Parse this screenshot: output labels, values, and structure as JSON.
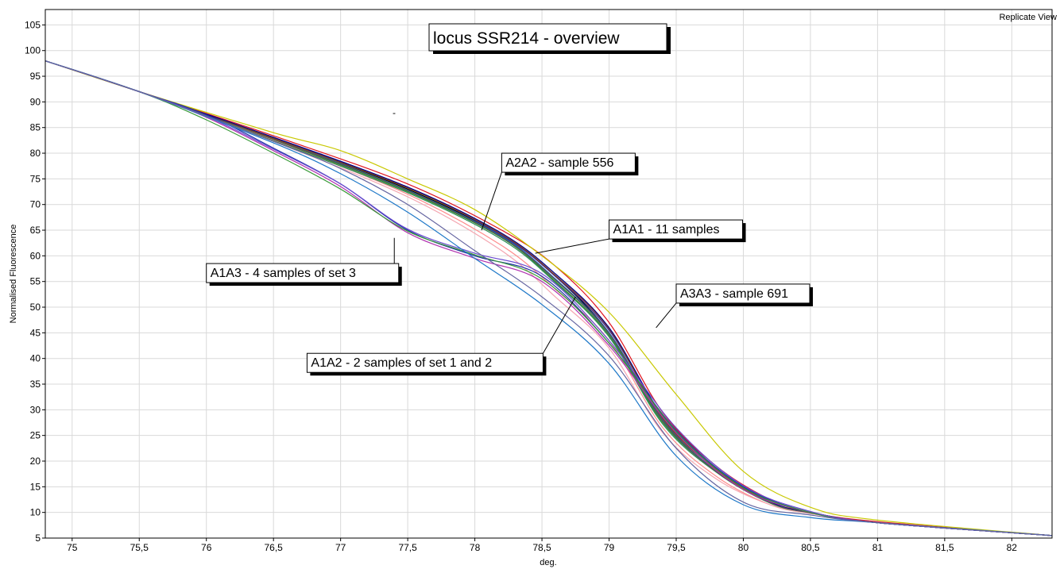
{
  "view_label": "Replicate View",
  "chart_data": {
    "type": "line",
    "title": "locus SSR214 - overview",
    "xlabel": "deg.",
    "ylabel": "Normalised Fluorescence",
    "xlim": [
      74.8,
      82.3
    ],
    "ylim": [
      5,
      108
    ],
    "x_ticks": [
      75,
      75.5,
      76,
      76.5,
      77,
      77.5,
      78,
      78.5,
      79,
      79.5,
      80,
      80.5,
      81,
      81.5,
      82
    ],
    "x_tick_labels": [
      "75",
      "75,5",
      "76",
      "76,5",
      "77",
      "77,5",
      "78",
      "78,5",
      "79",
      "79,5",
      "80",
      "80,5",
      "81",
      "81,5",
      "82"
    ],
    "y_ticks": [
      5,
      10,
      15,
      20,
      25,
      30,
      35,
      40,
      45,
      50,
      55,
      60,
      65,
      70,
      75,
      80,
      85,
      90,
      95,
      100,
      105
    ],
    "grid": true,
    "series": [
      {
        "color": "#000000",
        "x": [
          74.8,
          75.5,
          76.5,
          77.5,
          78.2,
          78.6,
          79.0,
          79.4,
          79.8,
          80.2,
          80.5,
          81.0,
          82.3
        ],
        "y": [
          98,
          92,
          83,
          73,
          64,
          56,
          45,
          28,
          18,
          12,
          10,
          8,
          5.5
        ]
      },
      {
        "color": "#3a1f9a",
        "x": [
          74.8,
          75.5,
          76.5,
          77.5,
          78.2,
          78.6,
          79.0,
          79.4,
          79.8,
          80.2,
          80.5,
          81.0,
          82.3
        ],
        "y": [
          98,
          92,
          83,
          73.3,
          64,
          56,
          45.5,
          28.5,
          18.5,
          12,
          10,
          8,
          5.5
        ]
      },
      {
        "color": "#1a5fa0",
        "x": [
          74.8,
          75.5,
          76.5,
          77.5,
          78.2,
          78.6,
          79.0,
          79.4,
          79.8,
          80.2,
          80.5,
          81.0,
          82.3
        ],
        "y": [
          98,
          92,
          82.8,
          72.8,
          63.8,
          55.5,
          45,
          28,
          18,
          12,
          10,
          8,
          5.5
        ]
      },
      {
        "color": "#2d8a2d",
        "x": [
          74.8,
          75.5,
          76.5,
          77.5,
          78.2,
          78.6,
          79.0,
          79.4,
          79.8,
          80.2,
          80.5,
          81.0,
          82.3
        ],
        "y": [
          98,
          92,
          82.6,
          72.5,
          63.5,
          55,
          44.5,
          27.5,
          18,
          12,
          10,
          8,
          5.5
        ]
      },
      {
        "color": "#e0141e",
        "x": [
          74.8,
          75.5,
          76.5,
          77.5,
          78.2,
          78.6,
          79.0,
          79.4,
          79.8,
          80.2,
          80.5,
          81.0,
          82.3
        ],
        "y": [
          98,
          92,
          83.4,
          74,
          65,
          58,
          47,
          29.5,
          19,
          12.5,
          10,
          8.2,
          5.5
        ]
      },
      {
        "color": "#ff8c8c",
        "x": [
          74.8,
          75.5,
          76.5,
          77.5,
          78.2,
          78.6,
          79.0,
          79.4,
          79.8,
          80.2,
          80.5,
          81.0,
          82.3
        ],
        "y": [
          98,
          92,
          82.5,
          72,
          62,
          53.5,
          43.5,
          26.5,
          17,
          11.5,
          9.8,
          8,
          5.5
        ]
      },
      {
        "color": "#f4a6b0",
        "x": [
          74.8,
          75.5,
          76.5,
          77.5,
          78.2,
          78.6,
          79.0,
          79.4,
          79.8,
          80.2,
          80.5,
          81.0,
          82.3
        ],
        "y": [
          98,
          92,
          82.3,
          71.5,
          61,
          52,
          42,
          25.5,
          16.5,
          11.5,
          9.8,
          8,
          5.5
        ]
      },
      {
        "color": "#8b4513",
        "x": [
          74.8,
          75.5,
          76.5,
          77.5,
          78.2,
          78.6,
          79.0,
          79.4,
          79.8,
          80.2,
          80.5,
          81.0,
          82.3
        ],
        "y": [
          98,
          92,
          82.9,
          73.2,
          64.2,
          56.2,
          45.8,
          28.3,
          18.3,
          12,
          10,
          8,
          5.5
        ]
      },
      {
        "color": "#2e8b57",
        "x": [
          74.8,
          75.5,
          76.5,
          77.5,
          78.2,
          78.6,
          79.0,
          79.4,
          79.8,
          80.2,
          80.5,
          81.0,
          82.3
        ],
        "y": [
          98,
          92,
          82.4,
          72.3,
          63.2,
          54.8,
          44.2,
          27.2,
          17.8,
          11.8,
          9.9,
          8,
          5.5
        ]
      },
      {
        "color": "#00008b",
        "x": [
          74.8,
          75.5,
          76.5,
          77.5,
          78.2,
          78.6,
          79.0,
          79.4,
          79.8,
          80.2,
          80.5,
          81.0,
          82.3
        ],
        "y": [
          98,
          92,
          83.1,
          73.4,
          64.4,
          56.5,
          46,
          28.8,
          18.6,
          12.1,
          10,
          8,
          5.5
        ]
      },
      {
        "color": "#555555",
        "x": [
          74.8,
          75.5,
          76.5,
          77.5,
          78.2,
          78.6,
          79.0,
          79.4,
          79.8,
          80.2,
          80.5,
          81.0,
          82.3
        ],
        "y": [
          98,
          92,
          82.7,
          72.7,
          63.6,
          55.3,
          44.8,
          27.8,
          17.9,
          11.9,
          9.9,
          8,
          5.5
        ]
      },
      {
        "color": "#c8c800",
        "x": [
          74.8,
          75.5,
          76.5,
          77.0,
          77.5,
          78.0,
          78.5,
          79.0,
          79.5,
          80.0,
          80.5,
          81.0,
          82.3
        ],
        "y": [
          98,
          92,
          84,
          80.5,
          75,
          69,
          60,
          49,
          33,
          18,
          11,
          8.5,
          5.5
        ]
      },
      {
        "color": "#1f2fa8",
        "x": [
          74.8,
          75.5,
          76.0,
          76.5,
          77.0,
          77.5,
          78.0,
          78.5,
          79.0,
          79.5,
          80.0,
          80.5,
          81.0,
          82.3
        ],
        "y": [
          98,
          92,
          87.5,
          81,
          74,
          65,
          60,
          56,
          43,
          26,
          15,
          10,
          8,
          5.5
        ]
      },
      {
        "color": "#b030b0",
        "x": [
          74.8,
          75.5,
          76.0,
          76.5,
          77.0,
          77.5,
          78.0,
          78.5,
          79.0,
          79.5,
          80.0,
          80.5,
          81.0,
          82.3
        ],
        "y": [
          98,
          92,
          87,
          80.5,
          73.5,
          64.5,
          59.5,
          55,
          42.5,
          25.5,
          14.5,
          10,
          8,
          5.5
        ]
      },
      {
        "color": "#3a9a3a",
        "x": [
          74.8,
          75.5,
          76.0,
          76.5,
          77.0,
          77.5,
          78.0,
          78.5,
          79.0,
          79.5,
          80.0,
          80.5,
          81.0,
          82.3
        ],
        "y": [
          98,
          92,
          86.5,
          80,
          73,
          64.8,
          60.2,
          55.5,
          43,
          25.8,
          14.8,
          10,
          8,
          5.5
        ]
      },
      {
        "color": "#6a4bd0",
        "x": [
          74.8,
          75.5,
          76.0,
          76.5,
          77.0,
          77.5,
          78.0,
          78.5,
          79.0,
          79.5,
          80.0,
          80.5,
          81.0,
          82.3
        ],
        "y": [
          98,
          92,
          87.2,
          80.8,
          74,
          65.2,
          60.5,
          56.5,
          43.5,
          26.5,
          15.2,
          10.2,
          8,
          5.5
        ]
      },
      {
        "color": "#1e78c8",
        "x": [
          74.8,
          75.5,
          76.5,
          77.0,
          77.5,
          78.0,
          78.5,
          79.0,
          79.5,
          80.0,
          80.5,
          81.0,
          82.3
        ],
        "y": [
          98,
          92,
          82,
          76,
          68.5,
          59.5,
          50.5,
          39,
          21,
          11.5,
          9,
          8,
          5.5
        ]
      },
      {
        "color": "#6464a0",
        "x": [
          74.8,
          75.5,
          76.5,
          77.0,
          77.5,
          78.0,
          78.5,
          79.0,
          79.5,
          80.0,
          80.5,
          81.0,
          82.3
        ],
        "y": [
          98,
          92,
          82.3,
          77,
          70,
          61,
          52,
          40.5,
          22.5,
          12,
          9.5,
          8,
          5.5
        ]
      }
    ],
    "annotations": [
      {
        "text": "A2A2 - sample 556",
        "x": 78.2,
        "y": 80,
        "target": [
          78.05,
          65
        ]
      },
      {
        "text": "A1A1 - 11 samples",
        "x": 79.0,
        "y": 67,
        "target": [
          78.45,
          60.5
        ]
      },
      {
        "text": "A1A3 - 4 samples of set 3",
        "x": 76.0,
        "y": 58.5,
        "target": [
          77.4,
          63.5
        ]
      },
      {
        "text": "A3A3 - sample 691",
        "x": 79.5,
        "y": 54.5,
        "target": [
          79.35,
          46
        ]
      },
      {
        "text": "A1A2 - 2 samples of set 1 and 2",
        "x": 76.75,
        "y": 41,
        "target": [
          78.75,
          52
        ]
      }
    ]
  }
}
